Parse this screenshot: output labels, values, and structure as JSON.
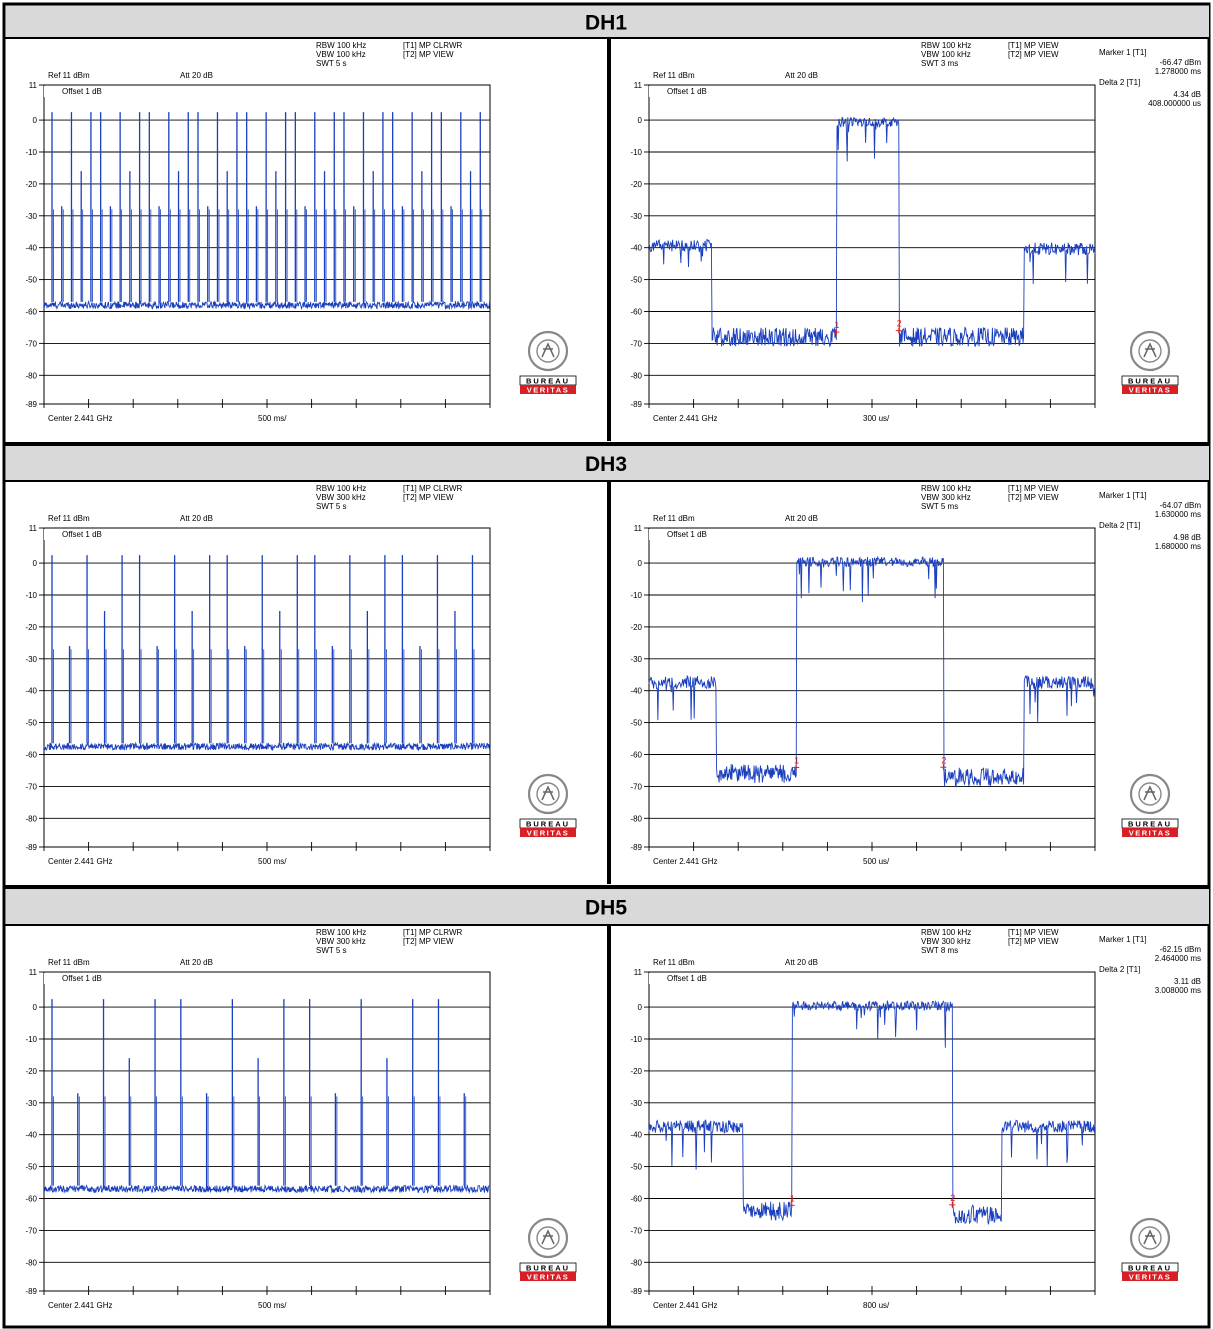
{
  "rows": [
    {
      "title": "DH1",
      "left": {
        "rbw": "RBW 100 kHz",
        "vbw": "VBW 100 kHz",
        "swt": "SWT 5 s",
        "t1": "[T1] MP CLRWR",
        "t2": "[T2] MP VIEW",
        "ref": "Ref 11 dBm",
        "att": "Att  20 dB",
        "offset": "Offset 1 dB",
        "center": "Center 2.441 GHz",
        "span": "500 ms/"
      },
      "right": {
        "rbw": "RBW 100 kHz",
        "vbw": "VBW 100 kHz",
        "swt": "SWT 3 ms",
        "t1": "[T1] MP VIEW",
        "t2": "[T2] MP VIEW",
        "ref": "Ref 11 dBm",
        "att": "Att  20 dB",
        "offset": "Offset 1 dB",
        "center": "Center 2.441 GHz",
        "span": "300 us/",
        "marker1_label": "Marker 1 [T1]",
        "marker1_level": "-66.47 dBm",
        "marker1_time": "1.278000 ms",
        "delta2_label": "Delta 2 [T1]",
        "delta2_level": "4.34 dB",
        "delta2_time": "408.000000 us"
      }
    },
    {
      "title": "DH3",
      "left": {
        "rbw": "RBW 100 kHz",
        "vbw": "VBW 300 kHz",
        "swt": "SWT 5 s",
        "t1": "[T1] MP CLRWR",
        "t2": "[T2] MP VIEW",
        "ref": "Ref 11 dBm",
        "att": "Att  20 dB",
        "offset": "Offset 1 dB",
        "center": "Center 2.441 GHz",
        "span": "500 ms/"
      },
      "right": {
        "rbw": "RBW 100 kHz",
        "vbw": "VBW 300 kHz",
        "swt": "SWT 5 ms",
        "t1": "[T1] MP VIEW",
        "t2": "[T2] MP VIEW",
        "ref": "Ref 11 dBm",
        "att": "Att  20 dB",
        "offset": "Offset 1 dB",
        "center": "Center 2.441 GHz",
        "span": "500 us/",
        "marker1_label": "Marker 1 [T1]",
        "marker1_level": "-64.07 dBm",
        "marker1_time": "1.630000 ms",
        "delta2_label": "Delta 2 [T1]",
        "delta2_level": "4.98 dB",
        "delta2_time": "1.680000 ms"
      }
    },
    {
      "title": "DH5",
      "left": {
        "rbw": "RBW 100 kHz",
        "vbw": "VBW 300 kHz",
        "swt": "SWT 5 s",
        "t1": "[T1] MP CLRWR",
        "t2": "[T2] MP VIEW",
        "ref": "Ref 11 dBm",
        "att": "Att  20 dB",
        "offset": "Offset 1 dB",
        "center": "Center 2.441 GHz",
        "span": "500 ms/"
      },
      "right": {
        "rbw": "RBW 100 kHz",
        "vbw": "VBW 300 kHz",
        "swt": "SWT 8 ms",
        "t1": "[T1] MP VIEW",
        "t2": "[T2] MP VIEW",
        "ref": "Ref 11 dBm",
        "att": "Att  20 dB",
        "offset": "Offset 1 dB",
        "center": "Center 2.441 GHz",
        "span": "800 us/",
        "marker1_label": "Marker 1 [T1]",
        "marker1_level": "-62.15 dBm",
        "marker1_time": "2.464000 ms",
        "delta2_label": "Delta 2 [T1]",
        "delta2_level": "3.11 dB",
        "delta2_time": "3.008000 ms"
      }
    }
  ],
  "logo": {
    "ring_text": "BUREAU VERITAS",
    "year": "1828",
    "word1": "BUREAU",
    "word2": "VERITAS",
    "colors": {
      "red": "#d91f26",
      "grey": "#888888"
    }
  },
  "trace_color": "#1a3fbf",
  "marker_color": "#e02020",
  "chart_data": [
    {
      "type": "line",
      "id": "dh1-left",
      "title": "",
      "xlabel": "",
      "ylabel": "",
      "y_ticks": [
        "11",
        "0",
        "-10",
        "-20",
        "-30",
        "-40",
        "-50",
        "-60",
        "-70",
        "-80",
        "-89"
      ],
      "ylim": [
        -89,
        11
      ],
      "x_divisions": 10,
      "grid": true,
      "series": [
        {
          "kind": "pulse_train",
          "n_pulses": 45,
          "baseline_dbm": -58,
          "peak_dbm": 2.5,
          "secondary_peaks_dbm": [
            -27,
            -16,
            -7
          ]
        }
      ]
    },
    {
      "type": "line",
      "id": "dh1-right",
      "title": "",
      "xlabel": "",
      "ylabel": "",
      "y_ticks": [
        "11",
        "0",
        "-10",
        "-20",
        "-30",
        "-40",
        "-50",
        "-60",
        "-70",
        "-80",
        "-89"
      ],
      "ylim": [
        -89,
        11
      ],
      "x_divisions": 10,
      "grid": true,
      "series": [
        {
          "kind": "segments",
          "segments": [
            [
              0,
              0.14,
              -39
            ],
            [
              0.14,
              0.42,
              -68
            ],
            [
              0.42,
              0.56,
              0
            ],
            [
              0.56,
              0.84,
              -68
            ],
            [
              0.84,
              1.0,
              -40
            ]
          ]
        }
      ],
      "markers": [
        {
          "label": "1",
          "x_frac": 0.42,
          "y_dbm": -66.47
        },
        {
          "label": "2",
          "x_frac": 0.56,
          "y_dbm": -66
        }
      ]
    },
    {
      "type": "line",
      "id": "dh3-left",
      "title": "",
      "xlabel": "",
      "ylabel": "",
      "y_ticks": [
        "11",
        "0",
        "-10",
        "-20",
        "-30",
        "-40",
        "-50",
        "-60",
        "-70",
        "-80",
        "-89"
      ],
      "ylim": [
        -89,
        11
      ],
      "x_divisions": 10,
      "grid": true,
      "series": [
        {
          "kind": "pulse_train",
          "n_pulses": 25,
          "baseline_dbm": -57.5,
          "peak_dbm": 2.5,
          "secondary_peaks_dbm": [
            -26,
            -15,
            -5
          ]
        }
      ]
    },
    {
      "type": "line",
      "id": "dh3-right",
      "title": "",
      "xlabel": "",
      "ylabel": "",
      "y_ticks": [
        "11",
        "0",
        "-10",
        "-20",
        "-30",
        "-40",
        "-50",
        "-60",
        "-70",
        "-80",
        "-89"
      ],
      "ylim": [
        -89,
        11
      ],
      "x_divisions": 10,
      "grid": true,
      "series": [
        {
          "kind": "segments",
          "segments": [
            [
              0,
              0.15,
              -37
            ],
            [
              0.15,
              0.33,
              -66
            ],
            [
              0.33,
              0.66,
              1
            ],
            [
              0.66,
              0.84,
              -67
            ],
            [
              0.84,
              1.0,
              -37
            ]
          ]
        }
      ],
      "markers": [
        {
          "label": "1",
          "x_frac": 0.33,
          "y_dbm": -64.07
        },
        {
          "label": "2",
          "x_frac": 0.66,
          "y_dbm": -64
        }
      ]
    },
    {
      "type": "line",
      "id": "dh5-left",
      "title": "",
      "xlabel": "",
      "ylabel": "",
      "y_ticks": [
        "11",
        "0",
        "-10",
        "-20",
        "-30",
        "-40",
        "-50",
        "-60",
        "-70",
        "-80",
        "-89"
      ],
      "ylim": [
        -89,
        11
      ],
      "x_divisions": 10,
      "grid": true,
      "series": [
        {
          "kind": "pulse_train",
          "n_pulses": 17,
          "baseline_dbm": -57,
          "peak_dbm": 2.5,
          "secondary_peaks_dbm": [
            -27,
            -16,
            -7
          ]
        }
      ]
    },
    {
      "type": "line",
      "id": "dh5-right",
      "title": "",
      "xlabel": "",
      "ylabel": "",
      "y_ticks": [
        "11",
        "0",
        "-10",
        "-20",
        "-30",
        "-40",
        "-50",
        "-60",
        "-70",
        "-80",
        "-89"
      ],
      "ylim": [
        -89,
        11
      ],
      "x_divisions": 10,
      "grid": true,
      "series": [
        {
          "kind": "segments",
          "segments": [
            [
              0,
              0.21,
              -37
            ],
            [
              0.21,
              0.32,
              -64
            ],
            [
              0.32,
              0.68,
              1
            ],
            [
              0.68,
              0.79,
              -65
            ],
            [
              0.79,
              1.0,
              -37
            ]
          ]
        }
      ],
      "markers": [
        {
          "label": "1",
          "x_frac": 0.32,
          "y_dbm": -62.15
        },
        {
          "label": "2",
          "x_frac": 0.68,
          "y_dbm": -62
        }
      ]
    }
  ]
}
